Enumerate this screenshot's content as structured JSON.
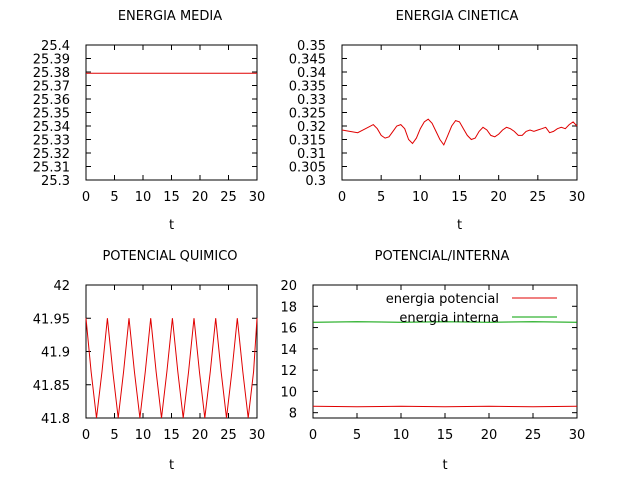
{
  "chart_data": [
    {
      "type": "line",
      "title": "ENERGIA MEDIA",
      "xlabel": "t",
      "ylabel": "",
      "xlim": [
        0,
        30
      ],
      "ylim": [
        25.3,
        25.4
      ],
      "xticks": [
        "0",
        "5",
        "10",
        "15",
        "20",
        "25",
        "30"
      ],
      "yticks": [
        "25.3",
        "25.31",
        "25.32",
        "25.33",
        "25.34",
        "25.35",
        "25.36",
        "25.37",
        "25.38",
        "25.39",
        "25.4"
      ],
      "grid": false,
      "series": [
        {
          "color": "#e00000",
          "x": [
            0,
            5,
            10,
            15,
            20,
            25,
            30
          ],
          "y": [
            25.379,
            25.379,
            25.379,
            25.379,
            25.379,
            25.379,
            25.379
          ]
        }
      ]
    },
    {
      "type": "line",
      "title": "ENERGIA CINETICA",
      "xlabel": "t",
      "ylabel": "",
      "xlim": [
        0,
        30
      ],
      "ylim": [
        0.3,
        0.35
      ],
      "xticks": [
        "0",
        "5",
        "10",
        "15",
        "20",
        "25",
        "30"
      ],
      "yticks": [
        "0.3",
        "0.305",
        "0.31",
        "0.315",
        "0.32",
        "0.325",
        "0.33",
        "0.335",
        "0.34",
        "0.345",
        "0.35"
      ],
      "grid": false,
      "series": [
        {
          "color": "#e00000",
          "x": [
            0,
            1,
            2,
            3,
            4,
            4.5,
            5,
            5.5,
            6,
            6.5,
            7,
            7.5,
            8,
            8.5,
            9,
            9.5,
            10,
            10.5,
            11,
            11.5,
            12,
            12.5,
            13,
            13.5,
            14,
            14.5,
            15,
            15.5,
            16,
            16.5,
            17,
            17.5,
            18,
            18.5,
            19,
            19.5,
            20,
            20.5,
            21,
            21.5,
            22,
            22.5,
            23,
            23.5,
            24,
            24.5,
            25,
            25.5,
            26,
            26.5,
            27,
            27.5,
            28,
            28.5,
            29,
            29.5,
            30
          ],
          "y": [
            0.3185,
            0.318,
            0.3175,
            0.319,
            0.3205,
            0.319,
            0.3165,
            0.3155,
            0.316,
            0.318,
            0.32,
            0.3205,
            0.319,
            0.315,
            0.3135,
            0.3155,
            0.319,
            0.3215,
            0.3225,
            0.321,
            0.318,
            0.315,
            0.313,
            0.3165,
            0.32,
            0.322,
            0.3215,
            0.319,
            0.3165,
            0.315,
            0.3155,
            0.318,
            0.3195,
            0.3185,
            0.3165,
            0.316,
            0.317,
            0.3185,
            0.3195,
            0.319,
            0.318,
            0.3165,
            0.3165,
            0.318,
            0.3185,
            0.318,
            0.3185,
            0.319,
            0.3195,
            0.3175,
            0.318,
            0.319,
            0.3195,
            0.319,
            0.3205,
            0.3215,
            0.32
          ]
        }
      ]
    },
    {
      "type": "line",
      "title": "POTENCIAL QUIMICO",
      "xlabel": "t",
      "ylabel": "",
      "xlim": [
        0,
        30
      ],
      "ylim": [
        41.8,
        42
      ],
      "xticks": [
        "0",
        "5",
        "10",
        "15",
        "20",
        "25",
        "30"
      ],
      "yticks": [
        "41.8",
        "41.85",
        "41.9",
        "41.95",
        "42"
      ],
      "grid": false,
      "series": [
        {
          "color": "#e00000",
          "x": [
            0,
            0.9,
            1.85,
            2.8,
            3.75,
            4.7,
            5.65,
            6.6,
            7.55,
            8.5,
            9.45,
            10.4,
            11.35,
            12.3,
            13.25,
            14.2,
            15.15,
            16.1,
            17.05,
            18.0,
            18.95,
            19.9,
            20.85,
            21.8,
            22.75,
            23.7,
            24.65,
            25.6,
            26.55,
            27.5,
            28.45,
            29.4,
            30
          ],
          "y": [
            41.95,
            41.87,
            41.8,
            41.87,
            41.95,
            41.87,
            41.8,
            41.87,
            41.95,
            41.87,
            41.8,
            41.87,
            41.95,
            41.87,
            41.8,
            41.87,
            41.95,
            41.87,
            41.8,
            41.87,
            41.95,
            41.87,
            41.8,
            41.87,
            41.95,
            41.87,
            41.8,
            41.87,
            41.95,
            41.87,
            41.8,
            41.87,
            41.95
          ]
        }
      ]
    },
    {
      "type": "line",
      "title": "POTENCIAL/INTERNA",
      "xlabel": "t",
      "ylabel": "",
      "xlim": [
        0,
        30
      ],
      "ylim": [
        7.5,
        20
      ],
      "xticks": [
        "0",
        "5",
        "10",
        "15",
        "20",
        "25",
        "30"
      ],
      "yticks": [
        "8",
        "10",
        "12",
        "14",
        "16",
        "18",
        "20"
      ],
      "grid": false,
      "legend": "top-right",
      "series": [
        {
          "name": "energia potencial",
          "color": "#e00000",
          "x": [
            0,
            5,
            10,
            15,
            20,
            25,
            30
          ],
          "y": [
            8.6,
            8.55,
            8.6,
            8.55,
            8.6,
            8.55,
            8.6
          ]
        },
        {
          "name": "energia interna",
          "color": "#00a000",
          "x": [
            0,
            5,
            10,
            15,
            20,
            25,
            30
          ],
          "y": [
            16.5,
            16.55,
            16.5,
            16.55,
            16.5,
            16.55,
            16.5
          ]
        }
      ]
    }
  ]
}
